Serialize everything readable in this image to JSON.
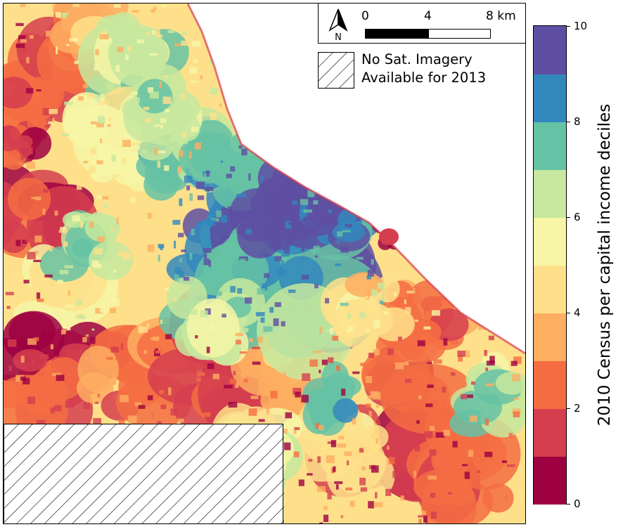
{
  "scale_bar": {
    "unit": "km",
    "ticks": [
      "0",
      "4",
      "8 km"
    ],
    "north_label": "N"
  },
  "legend": {
    "line1": "No Sat. Imagery",
    "line2": "Available for 2013"
  },
  "colorbar": {
    "title": "2010 Census per capital income deciles",
    "ticks": [
      "0",
      "2",
      "4",
      "6",
      "8",
      "10"
    ],
    "colors": [
      "#9e0142",
      "#d53e4f",
      "#f46d43",
      "#fdae61",
      "#fee08b",
      "#ffffbf",
      "#e6f598",
      "#abdda4",
      "#66c2a5",
      "#3288bd",
      "#5e4fa2"
    ]
  }
}
